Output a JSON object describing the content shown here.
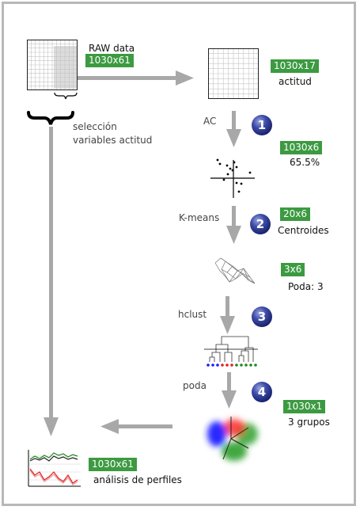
{
  "raw": {
    "title": "RAW data",
    "dims": "1030x61"
  },
  "selection": {
    "label_line1": "selección",
    "label_line2": "variables actitud"
  },
  "attitude": {
    "dims": "1030x17",
    "label": "actitud"
  },
  "steps": [
    {
      "num": "1",
      "method": "AC",
      "dims": "1030x6",
      "caption": "65.5%"
    },
    {
      "num": "2",
      "method": "K-means",
      "dims": "20x6",
      "caption": "Centroides"
    },
    {
      "num": "3",
      "method": "hclust",
      "dims": "3x6",
      "caption": "Poda: 3"
    },
    {
      "num": "4",
      "method": "poda",
      "dims": "1030x1",
      "caption": "3 grupos"
    }
  ],
  "profiles": {
    "dims": "1030x61",
    "label": "análisis de perfiles"
  },
  "colors": {
    "badge": "#3c9a41",
    "arrow": "#a8a8a8",
    "frame": "#b8b8b8",
    "step": "#1c2470"
  }
}
